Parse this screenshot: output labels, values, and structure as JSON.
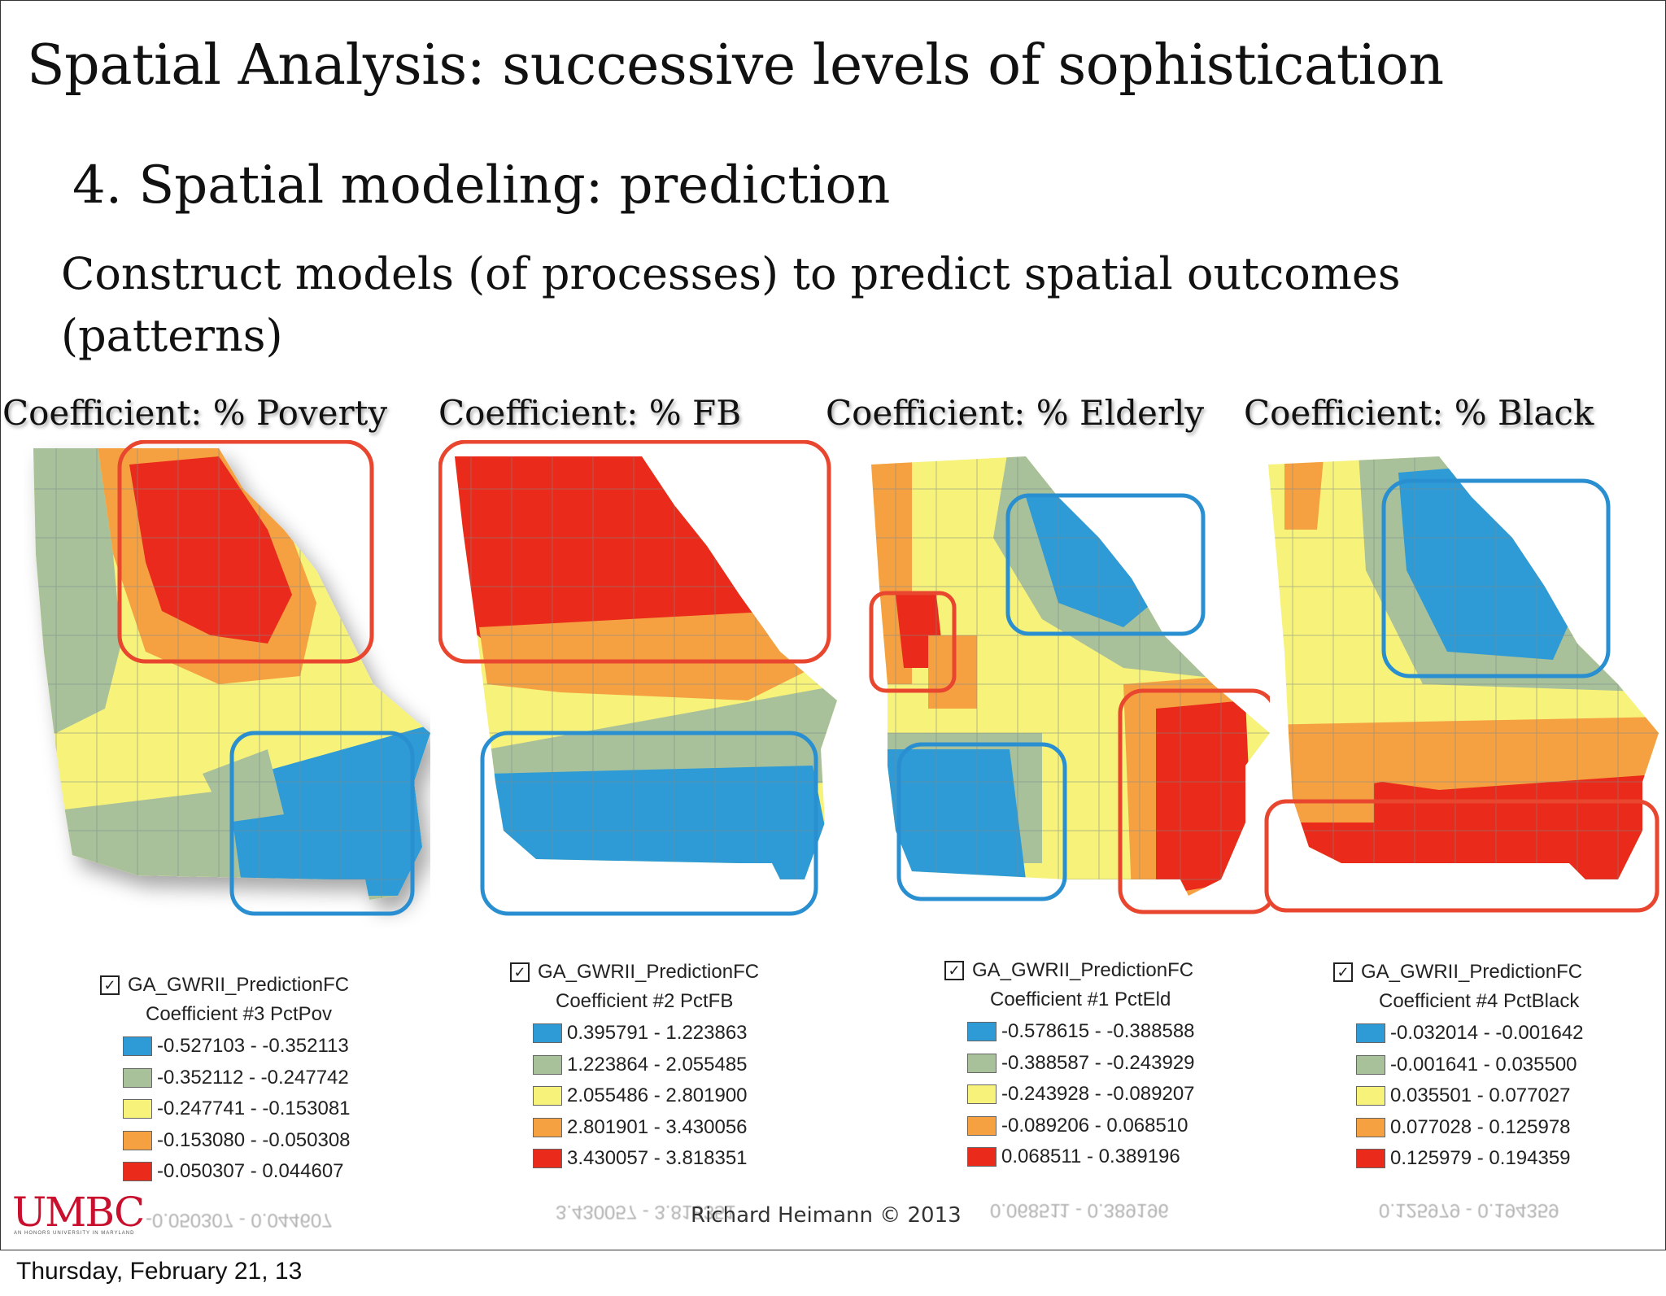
{
  "slide": {
    "title": "Spatial Analysis: successive levels of sophistication",
    "subtitle": "4. Spatial modeling: prediction",
    "description": "Construct models (of processes) to predict spatial outcomes (patterns)",
    "credit": "Richard Heimann © 2013",
    "logo": "UMBC",
    "logo_tagline": "AN HONORS UNIVERSITY IN MARYLAND",
    "footer_date": "Thursday, February 21, 13"
  },
  "colors": {
    "blue": "#2e9bd6",
    "green": "#a9c19a",
    "yellow": "#f7f27a",
    "orange": "#f5a142",
    "red": "#ea2a1a",
    "highlight_red": "#e8462f",
    "highlight_blue": "#2a8fd0"
  },
  "panels": [
    {
      "heading": "Coefficient: % Poverty",
      "layer": "GA_GWRII_PredictionFC",
      "coefficient": "Coefficient #3 PctPov",
      "classes": [
        {
          "range": "-0.527103 - -0.352113",
          "color": "blue"
        },
        {
          "range": "-0.352112 - -0.247742",
          "color": "green"
        },
        {
          "range": "-0.247741 - -0.153081",
          "color": "yellow"
        },
        {
          "range": "-0.153080 - -0.050308",
          "color": "orange"
        },
        {
          "range": "-0.050307 - 0.044607",
          "color": "red"
        }
      ]
    },
    {
      "heading": "Coefficient: % FB",
      "layer": "GA_GWRII_PredictionFC",
      "coefficient": "Coefficient #2 PctFB",
      "classes": [
        {
          "range": "0.395791 - 1.223863",
          "color": "blue"
        },
        {
          "range": "1.223864 - 2.055485",
          "color": "green"
        },
        {
          "range": "2.055486 - 2.801900",
          "color": "yellow"
        },
        {
          "range": "2.801901 - 3.430056",
          "color": "orange"
        },
        {
          "range": "3.430057 - 3.818351",
          "color": "red"
        }
      ]
    },
    {
      "heading": "Coefficient: % Elderly",
      "layer": "GA_GWRII_PredictionFC",
      "coefficient": "Coefficient #1 PctEld",
      "classes": [
        {
          "range": "-0.578615 - -0.388588",
          "color": "blue"
        },
        {
          "range": "-0.388587 - -0.243929",
          "color": "green"
        },
        {
          "range": "-0.243928 - -0.089207",
          "color": "yellow"
        },
        {
          "range": "-0.089206 - 0.068510",
          "color": "orange"
        },
        {
          "range": "0.068511 - 0.389196",
          "color": "red"
        }
      ]
    },
    {
      "heading": "Coefficient: % Black",
      "layer": "GA_GWRII_PredictionFC",
      "coefficient": "Coefficient #4 PctBlack",
      "classes": [
        {
          "range": "-0.032014 - -0.001642",
          "color": "blue"
        },
        {
          "range": "-0.001641 - 0.035500",
          "color": "green"
        },
        {
          "range": "0.035501 - 0.077027",
          "color": "yellow"
        },
        {
          "range": "0.077028 - 0.125978",
          "color": "orange"
        },
        {
          "range": "0.125979 - 0.194359",
          "color": "red"
        }
      ]
    }
  ]
}
